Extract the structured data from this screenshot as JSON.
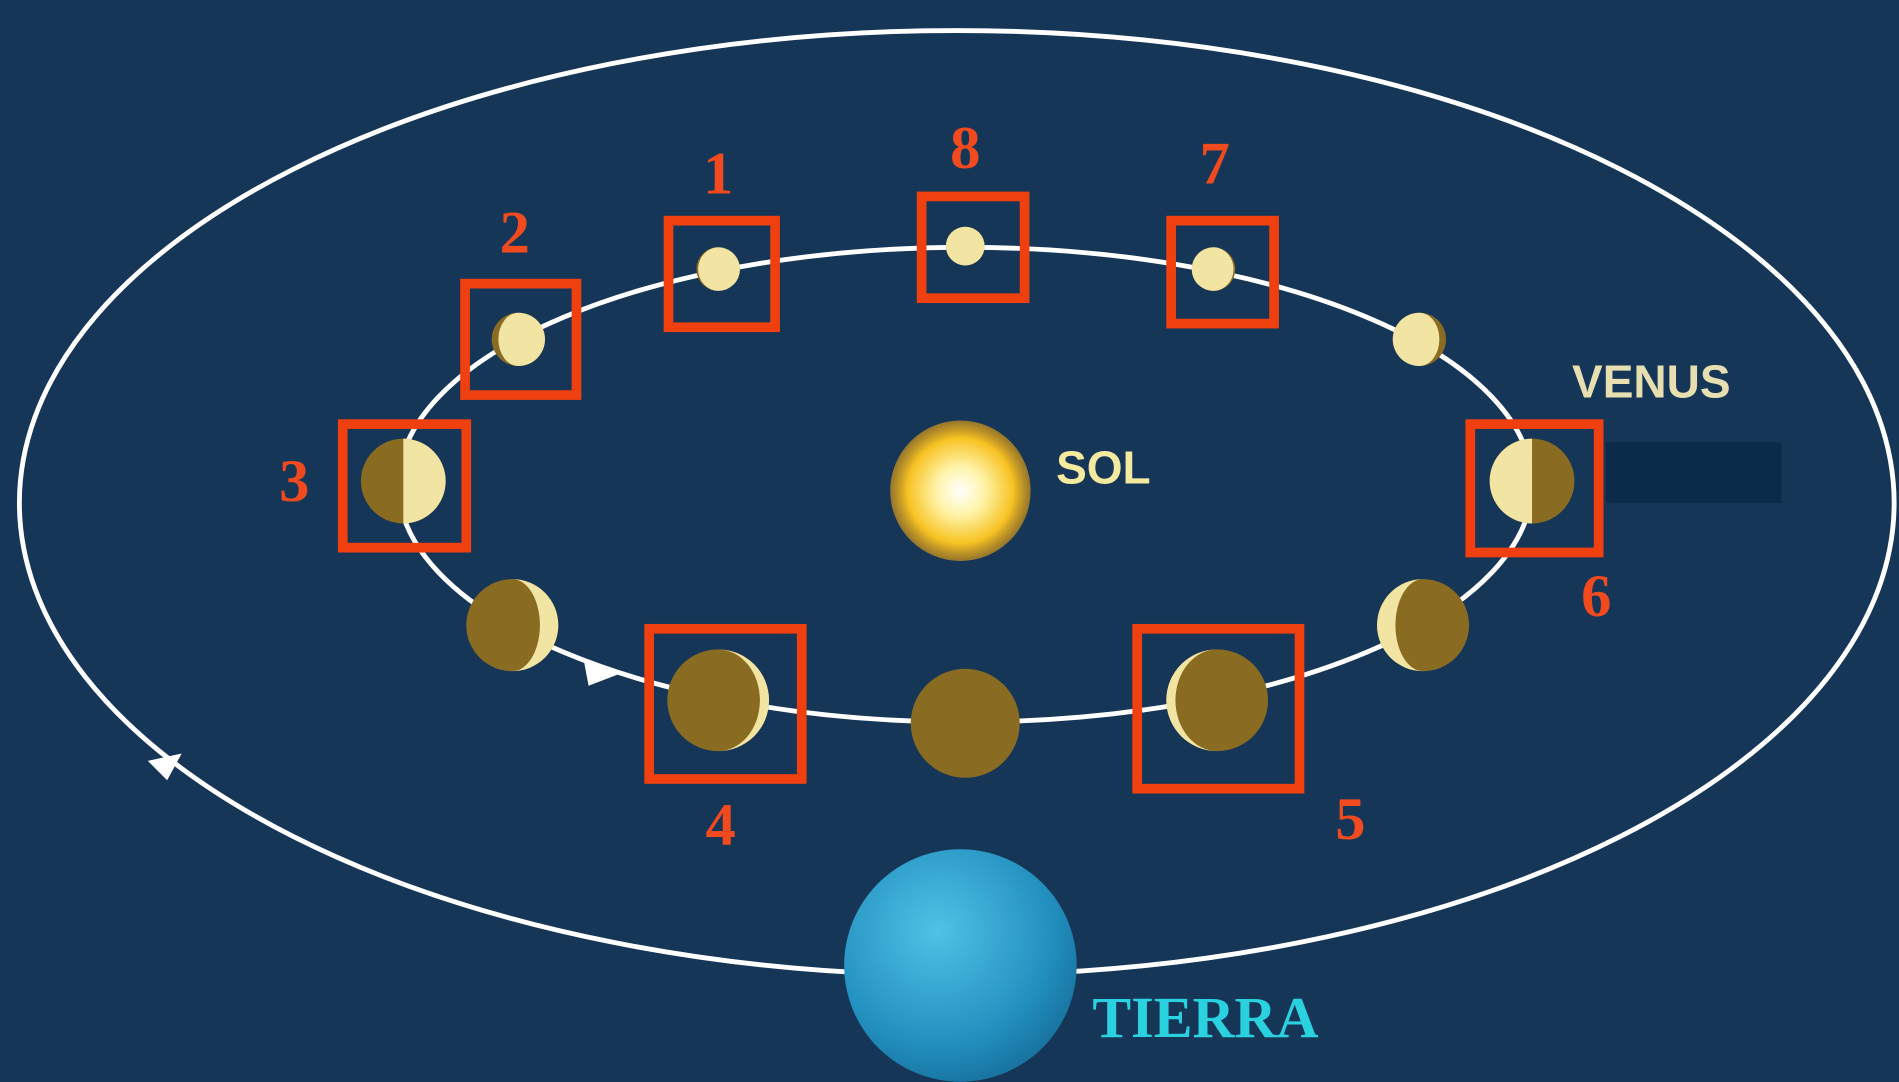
{
  "labels": {
    "sun": "SOL",
    "planet": "VENUS",
    "earth": "TIERRA"
  },
  "markers": [
    "1",
    "2",
    "3",
    "4",
    "5",
    "6",
    "7",
    "8"
  ]
}
